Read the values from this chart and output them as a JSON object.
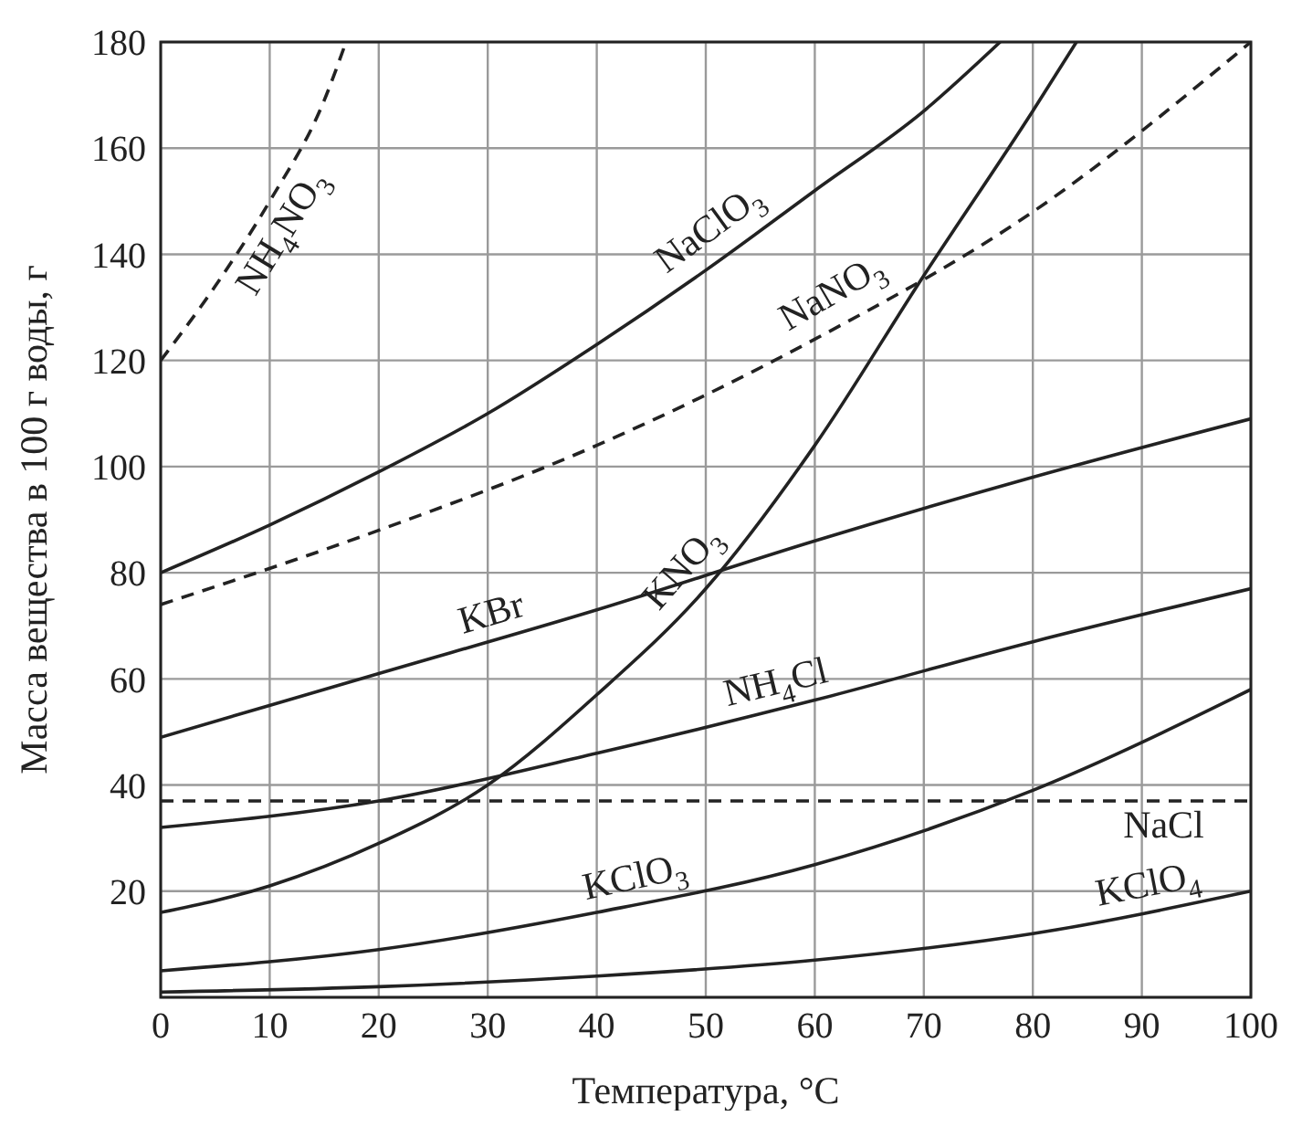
{
  "chart_data": {
    "type": "line",
    "xlabel": "Температура, °C",
    "ylabel": "Масса вещества в 100 г воды, г",
    "xlim": [
      0,
      100
    ],
    "ylim": [
      0,
      180
    ],
    "xticks": [
      0,
      10,
      20,
      30,
      40,
      50,
      60,
      70,
      80,
      90,
      100
    ],
    "yticks": [
      20,
      40,
      60,
      80,
      100,
      120,
      140,
      160,
      180
    ],
    "grid": true,
    "legend": false,
    "marker": "none",
    "series": [
      {
        "name": "NH$_{4}$NO$_{3}$",
        "color": "#222222",
        "line_style": "dashed",
        "x": [
          0,
          5,
          10,
          15,
          17
        ],
        "values": [
          120,
          134,
          150,
          169,
          180
        ]
      },
      {
        "name": "NaClO$_{3}$",
        "color": "#222222",
        "line_style": "solid",
        "x": [
          0,
          10,
          20,
          30,
          40,
          50,
          60,
          70,
          77
        ],
        "values": [
          80,
          89,
          99,
          110,
          123,
          137,
          152,
          167,
          180
        ]
      },
      {
        "name": "NaNO$_{3}$",
        "color": "#222222",
        "line_style": "dashed",
        "x": [
          0,
          20,
          40,
          60,
          80,
          100
        ],
        "values": [
          74,
          88,
          104,
          124,
          148,
          180
        ]
      },
      {
        "name": "KNO$_{3}$",
        "color": "#222222",
        "line_style": "solid",
        "x": [
          0,
          10,
          20,
          30,
          40,
          50,
          60,
          70,
          80,
          84
        ],
        "values": [
          16,
          21,
          29,
          40,
          57,
          77,
          104,
          136,
          167,
          180
        ]
      },
      {
        "name": "KBr",
        "color": "#222222",
        "line_style": "solid",
        "x": [
          0,
          20,
          40,
          60,
          80,
          100
        ],
        "values": [
          49,
          61,
          73,
          86,
          98,
          109
        ]
      },
      {
        "name": "NH$_{4}$Cl",
        "color": "#222222",
        "line_style": "solid",
        "x": [
          0,
          20,
          40,
          60,
          80,
          100
        ],
        "values": [
          32,
          37,
          46,
          56,
          67,
          77
        ]
      },
      {
        "name": "KClO$_{3}$",
        "color": "#222222",
        "line_style": "solid",
        "x": [
          0,
          20,
          40,
          60,
          80,
          100
        ],
        "values": [
          5,
          9,
          16,
          25,
          39,
          58
        ]
      },
      {
        "name": "NaCl",
        "color": "#222222",
        "line_style": "dashed",
        "x": [
          0,
          100
        ],
        "values": [
          37,
          37
        ]
      },
      {
        "name": "KClO$_{4}$",
        "color": "#222222",
        "line_style": "solid",
        "x": [
          0,
          20,
          40,
          60,
          80,
          100
        ],
        "values": [
          1,
          2,
          4,
          7,
          12,
          20
        ]
      }
    ]
  }
}
